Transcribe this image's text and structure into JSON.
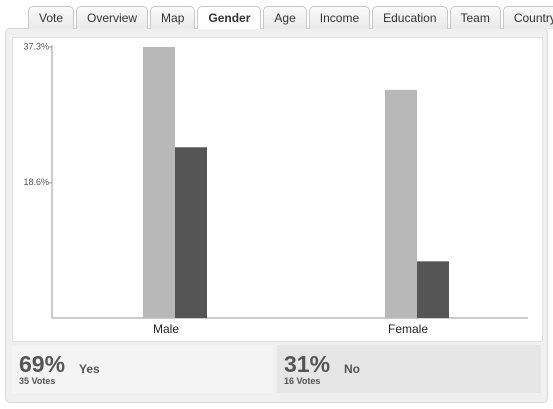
{
  "tabs": [
    "Vote",
    "Overview",
    "Map",
    "Gender",
    "Age",
    "Income",
    "Education",
    "Team",
    "Country"
  ],
  "active_tab": 3,
  "chart_data": {
    "type": "bar",
    "categories": [
      "Male",
      "Female"
    ],
    "series": [
      {
        "color": "#b8b8b8",
        "values": [
          37.3,
          31.4
        ]
      },
      {
        "color": "#555555",
        "values": [
          23.5,
          7.8
        ]
      }
    ],
    "ylim": [
      0,
      37.3
    ],
    "yticks": [
      {
        "value": 18.6,
        "label": "18.6%"
      },
      {
        "value": 37.3,
        "label": "37.3%"
      }
    ]
  },
  "summary": [
    {
      "percent": "69%",
      "answer": "Yes",
      "votes": "35 Votes"
    },
    {
      "percent": "31%",
      "answer": "No",
      "votes": "16 Votes"
    }
  ]
}
